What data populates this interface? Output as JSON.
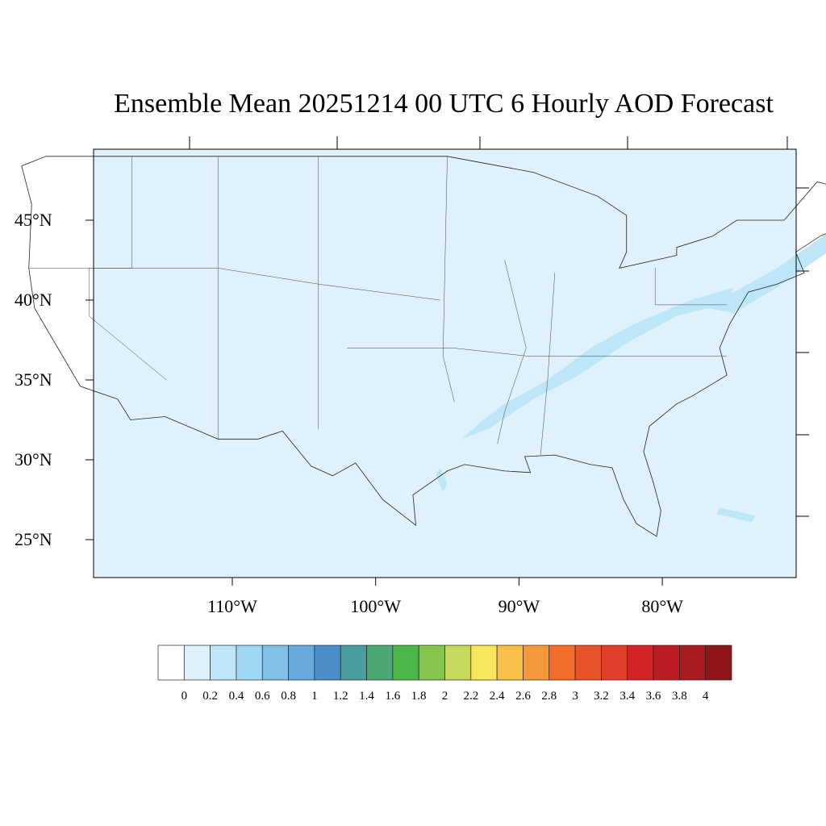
{
  "title": "Ensemble Mean 20251214 00 UTC 6 Hourly AOD Forecast",
  "map": {
    "background_color": "#dff1fa",
    "plume_color": "#bde6f8",
    "lat_labels": [
      "45°N",
      "40°N",
      "35°N",
      "30°N",
      "25°N"
    ],
    "lat_values": [
      45,
      40,
      35,
      30,
      25
    ],
    "lon_labels": [
      "110°W",
      "100°W",
      "90°W",
      "80°W"
    ],
    "lon_values": [
      -110,
      -100,
      -90,
      -80
    ]
  },
  "colorbar": {
    "labels": [
      "0",
      "0.2",
      "0.4",
      "0.6",
      "0.8",
      "1",
      "1.2",
      "1.4",
      "1.6",
      "1.8",
      "2",
      "2.2",
      "2.4",
      "2.6",
      "2.8",
      "3",
      "3.2",
      "3.4",
      "3.6",
      "3.8",
      "4"
    ],
    "colors": [
      "#ffffff",
      "#ddf1fa",
      "#bde6f8",
      "#9fd8f4",
      "#82c0e6",
      "#67a9dc",
      "#4a8dc8",
      "#4a9d9f",
      "#4aa874",
      "#4cb748",
      "#85c44e",
      "#c6d95a",
      "#f8e75c",
      "#f8bf4b",
      "#f6993d",
      "#f36c2a",
      "#e8532b",
      "#e0402b",
      "#d52228",
      "#bc1d23",
      "#a91b21",
      "#8f1519"
    ]
  }
}
